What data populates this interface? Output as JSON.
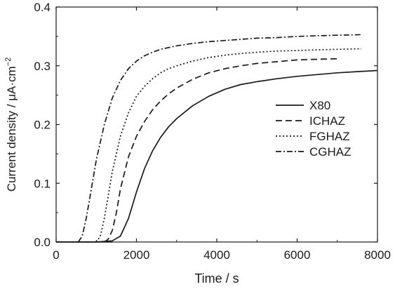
{
  "chart_data": {
    "type": "line",
    "title": "",
    "xlabel": "Time / s",
    "ylabel": "Current density / μA·cm",
    "ylabel_sup": "−2",
    "xlim": [
      0,
      8000
    ],
    "ylim": [
      0,
      0.4
    ],
    "xticks": [
      0,
      2000,
      4000,
      6000,
      8000
    ],
    "xtick_labels": [
      "0",
      "2000",
      "4000",
      "6000",
      "8000"
    ],
    "yticks": [
      0.0,
      0.1,
      0.2,
      0.3,
      0.4
    ],
    "ytick_labels": [
      "0.0",
      "0.1",
      "0.2",
      "0.3",
      "0.4"
    ],
    "grid": false,
    "legend_position": "right",
    "series": [
      {
        "name": "X80",
        "dash": "solid",
        "color": "#1a1a1a",
        "points": [
          [
            0,
            0.0
          ],
          [
            1000,
            0.0
          ],
          [
            1400,
            0.002
          ],
          [
            1600,
            0.01
          ],
          [
            1800,
            0.04
          ],
          [
            2000,
            0.085
          ],
          [
            2200,
            0.125
          ],
          [
            2400,
            0.155
          ],
          [
            2600,
            0.178
          ],
          [
            2800,
            0.196
          ],
          [
            3000,
            0.21
          ],
          [
            3400,
            0.232
          ],
          [
            3800,
            0.248
          ],
          [
            4200,
            0.26
          ],
          [
            4600,
            0.268
          ],
          [
            5000,
            0.273
          ],
          [
            5500,
            0.278
          ],
          [
            6000,
            0.282
          ],
          [
            6500,
            0.285
          ],
          [
            7000,
            0.288
          ],
          [
            7500,
            0.29
          ],
          [
            8000,
            0.292
          ]
        ]
      },
      {
        "name": "ICHAZ",
        "dash": "dashed",
        "color": "#1a1a1a",
        "points": [
          [
            1200,
            0.0
          ],
          [
            1300,
            0.005
          ],
          [
            1400,
            0.02
          ],
          [
            1500,
            0.05
          ],
          [
            1600,
            0.09
          ],
          [
            1800,
            0.145
          ],
          [
            2000,
            0.18
          ],
          [
            2200,
            0.205
          ],
          [
            2400,
            0.225
          ],
          [
            2600,
            0.24
          ],
          [
            2800,
            0.252
          ],
          [
            3000,
            0.262
          ],
          [
            3400,
            0.277
          ],
          [
            3800,
            0.288
          ],
          [
            4200,
            0.295
          ],
          [
            4600,
            0.3
          ],
          [
            5000,
            0.304
          ],
          [
            5500,
            0.307
          ],
          [
            6000,
            0.31
          ],
          [
            6500,
            0.311
          ],
          [
            7000,
            0.312
          ]
        ]
      },
      {
        "name": "FGHAZ",
        "dash": "dotted",
        "color": "#1a1a1a",
        "points": [
          [
            1000,
            0.0
          ],
          [
            1100,
            0.01
          ],
          [
            1200,
            0.04
          ],
          [
            1300,
            0.08
          ],
          [
            1400,
            0.12
          ],
          [
            1600,
            0.18
          ],
          [
            1800,
            0.22
          ],
          [
            2000,
            0.248
          ],
          [
            2200,
            0.265
          ],
          [
            2400,
            0.278
          ],
          [
            2600,
            0.288
          ],
          [
            2800,
            0.295
          ],
          [
            3000,
            0.3
          ],
          [
            3400,
            0.308
          ],
          [
            3800,
            0.314
          ],
          [
            4200,
            0.318
          ],
          [
            4600,
            0.321
          ],
          [
            5000,
            0.323
          ],
          [
            5500,
            0.325
          ],
          [
            6000,
            0.326
          ],
          [
            6500,
            0.327
          ],
          [
            7000,
            0.328
          ],
          [
            7600,
            0.329
          ]
        ]
      },
      {
        "name": "CGHAZ",
        "dash": "dashdot",
        "color": "#1a1a1a",
        "points": [
          [
            550,
            0.0
          ],
          [
            650,
            0.01
          ],
          [
            750,
            0.04
          ],
          [
            850,
            0.08
          ],
          [
            1000,
            0.14
          ],
          [
            1200,
            0.2
          ],
          [
            1400,
            0.245
          ],
          [
            1600,
            0.275
          ],
          [
            1800,
            0.295
          ],
          [
            2000,
            0.308
          ],
          [
            2200,
            0.317
          ],
          [
            2400,
            0.323
          ],
          [
            2600,
            0.328
          ],
          [
            2800,
            0.331
          ],
          [
            3000,
            0.334
          ],
          [
            3400,
            0.338
          ],
          [
            3800,
            0.341
          ],
          [
            4200,
            0.343
          ],
          [
            4600,
            0.345
          ],
          [
            5000,
            0.347
          ],
          [
            5500,
            0.348
          ],
          [
            6000,
            0.35
          ],
          [
            6500,
            0.351
          ],
          [
            7000,
            0.352
          ],
          [
            7600,
            0.353
          ]
        ]
      }
    ],
    "baseline": {
      "points": [
        [
          0,
          0.0
        ],
        [
          1400,
          0.0
        ]
      ]
    }
  }
}
